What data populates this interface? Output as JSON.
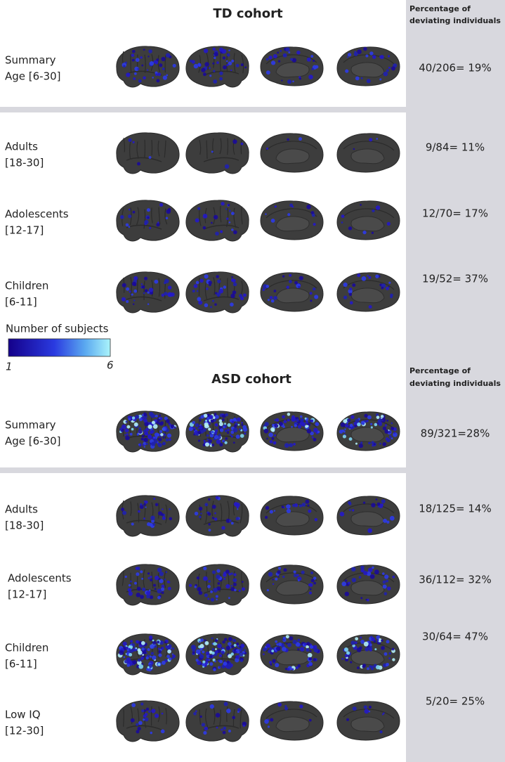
{
  "td": {
    "title": "TD cohort",
    "column_header": [
      "Percentage of",
      "deviating individuals"
    ],
    "rows": [
      {
        "label": [
          "Summary",
          "Age [6-30]"
        ],
        "percentage": "40/206= 19%"
      },
      {
        "label": [
          "Adults",
          "[18-30]"
        ],
        "percentage": "9/84= 11%"
      },
      {
        "label": [
          "Adolescents",
          "[12-17]"
        ],
        "percentage": "12/70= 17%"
      },
      {
        "label": [
          "Children",
          "[6-11]"
        ],
        "percentage": "19/52= 37%"
      }
    ]
  },
  "legend": {
    "title": "Number of subjects",
    "min": 1,
    "max": 6
  },
  "asd": {
    "title": "ASD cohort",
    "column_header": [
      "Percentage of",
      "deviating individuals"
    ],
    "rows": [
      {
        "label": [
          "Summary",
          "Age [6-30]"
        ],
        "percentage": "89/321=28%"
      },
      {
        "label": [
          "Adults",
          "[18-30]"
        ],
        "percentage": "18/125= 14%"
      },
      {
        "label": [
          "Adolescents",
          "[12-17]"
        ],
        "percentage": "36/112= 32%"
      },
      {
        "label": [
          "Children",
          "[6-11]"
        ],
        "percentage": "30/64= 47%"
      },
      {
        "label": [
          "Low IQ",
          "[12-30]"
        ],
        "percentage": "5/20= 25%"
      }
    ]
  }
}
